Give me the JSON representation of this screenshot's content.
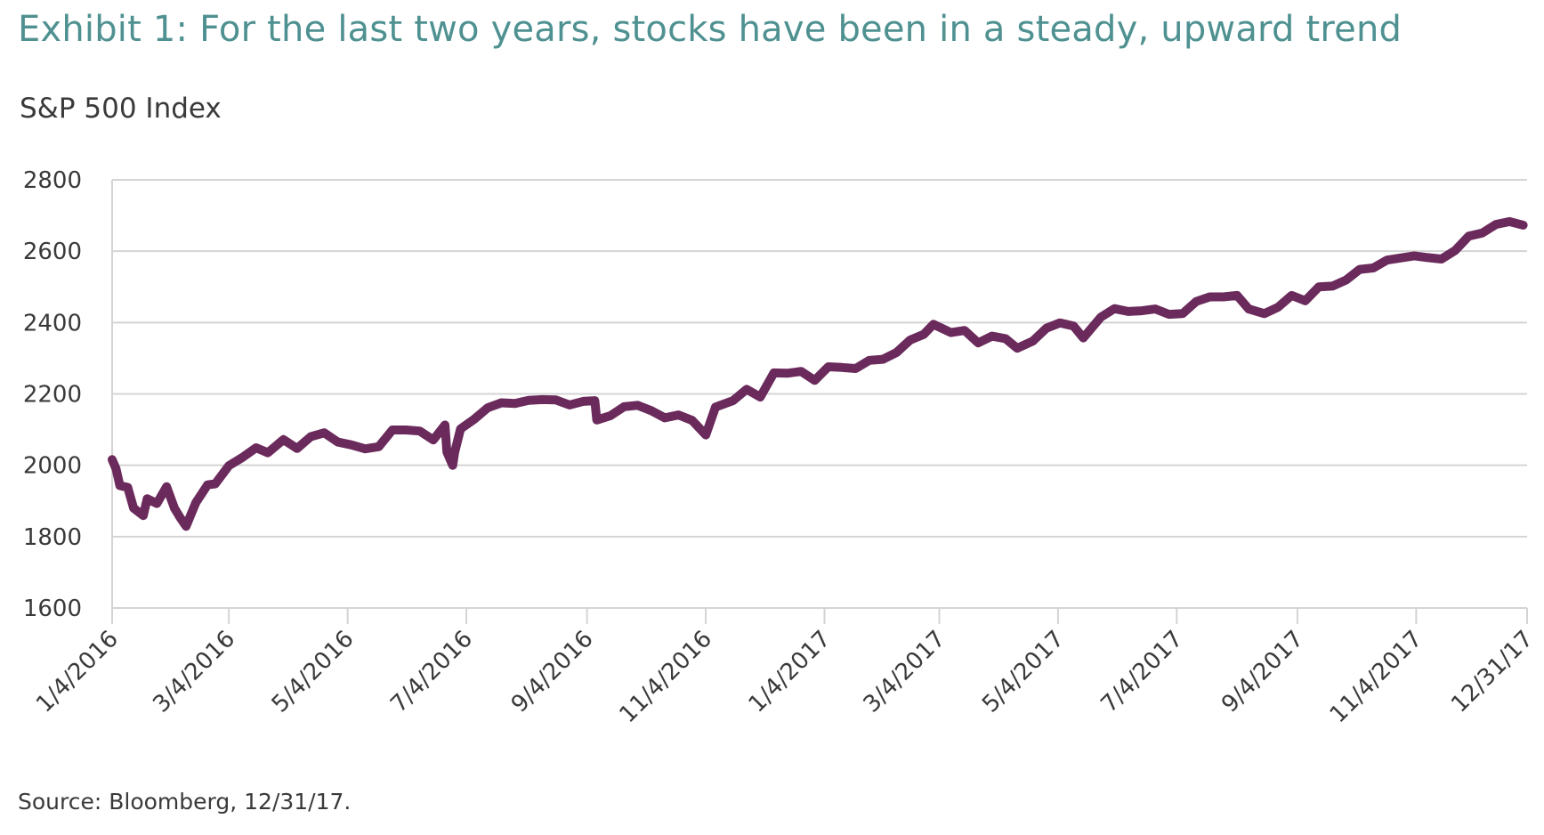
{
  "title": "Exhibit 1: For the last two years, stocks have been in a steady, upward trend",
  "subtitle": "S&P 500 Index",
  "source": "Source: Bloomberg, 12/31/17.",
  "colors": {
    "title": "#4f9191",
    "line": "#6b2a5c",
    "grid": "#d4d4d4",
    "text": "#3a3a3a"
  },
  "chart_data": {
    "type": "line",
    "title": "Exhibit 1: For the last two years, stocks have been in a steady, upward trend",
    "xlabel": "",
    "ylabel": "S&P 500 Index",
    "ylim": [
      1600,
      2800
    ],
    "yticks": [
      1600,
      1800,
      2000,
      2200,
      2400,
      2600,
      2800
    ],
    "xlim": [
      "2016-01-04",
      "2017-12-31"
    ],
    "xtick_labels": [
      "1/4/2016",
      "3/4/2016",
      "5/4/2016",
      "7/4/2016",
      "9/4/2016",
      "11/4/2016",
      "1/4/2017",
      "3/4/2017",
      "5/4/2017",
      "7/4/2017",
      "9/4/2017",
      "11/4/2017",
      "12/31/17"
    ],
    "xtick_dates": [
      "2016-01-04",
      "2016-03-04",
      "2016-05-04",
      "2016-07-04",
      "2016-09-04",
      "2016-11-04",
      "2017-01-04",
      "2017-03-04",
      "2017-05-04",
      "2017-07-04",
      "2017-09-04",
      "2017-11-04",
      "2017-12-31"
    ],
    "grid": true,
    "legend": "none",
    "series": [
      {
        "x": [
          "2016-01-04",
          "2016-01-06",
          "2016-01-08",
          "2016-01-12",
          "2016-01-15",
          "2016-01-20",
          "2016-01-22",
          "2016-01-27",
          "2016-02-01",
          "2016-02-05",
          "2016-02-08",
          "2016-02-11",
          "2016-02-16",
          "2016-02-22",
          "2016-02-26",
          "2016-03-04",
          "2016-03-11",
          "2016-03-18",
          "2016-03-24",
          "2016-04-01",
          "2016-04-08",
          "2016-04-15",
          "2016-04-22",
          "2016-04-29",
          "2016-05-06",
          "2016-05-13",
          "2016-05-20",
          "2016-05-27",
          "2016-06-03",
          "2016-06-10",
          "2016-06-17",
          "2016-06-23",
          "2016-06-24",
          "2016-06-27",
          "2016-06-28",
          "2016-07-01",
          "2016-07-08",
          "2016-07-15",
          "2016-07-22",
          "2016-07-29",
          "2016-08-05",
          "2016-08-12",
          "2016-08-19",
          "2016-08-26",
          "2016-09-02",
          "2016-09-08",
          "2016-09-09",
          "2016-09-16",
          "2016-09-23",
          "2016-09-30",
          "2016-10-07",
          "2016-10-14",
          "2016-10-21",
          "2016-10-28",
          "2016-11-04",
          "2016-11-09",
          "2016-11-18",
          "2016-11-25",
          "2016-12-02",
          "2016-12-09",
          "2016-12-16",
          "2016-12-23",
          "2016-12-30",
          "2017-01-06",
          "2017-01-13",
          "2017-01-20",
          "2017-01-27",
          "2017-02-03",
          "2017-02-10",
          "2017-02-17",
          "2017-02-24",
          "2017-03-01",
          "2017-03-10",
          "2017-03-17",
          "2017-03-24",
          "2017-03-31",
          "2017-04-07",
          "2017-04-13",
          "2017-04-21",
          "2017-04-28",
          "2017-05-05",
          "2017-05-12",
          "2017-05-17",
          "2017-05-26",
          "2017-06-02",
          "2017-06-09",
          "2017-06-16",
          "2017-06-23",
          "2017-06-30",
          "2017-07-07",
          "2017-07-14",
          "2017-07-21",
          "2017-07-28",
          "2017-08-04",
          "2017-08-10",
          "2017-08-18",
          "2017-08-25",
          "2017-09-01",
          "2017-09-08",
          "2017-09-15",
          "2017-09-22",
          "2017-09-29",
          "2017-10-06",
          "2017-10-13",
          "2017-10-20",
          "2017-10-27",
          "2017-11-03",
          "2017-11-10",
          "2017-11-17",
          "2017-11-24",
          "2017-12-01",
          "2017-12-08",
          "2017-12-15",
          "2017-12-22",
          "2017-12-29"
        ],
        "values": [
          2016,
          1990,
          1943,
          1938,
          1880,
          1859,
          1906,
          1893,
          1940,
          1880,
          1853,
          1829,
          1895,
          1945,
          1948,
          1999,
          2022,
          2049,
          2035,
          2072,
          2047,
          2080,
          2091,
          2065,
          2057,
          2046,
          2052,
          2099,
          2099,
          2096,
          2071,
          2113,
          2037,
          2000,
          2036,
          2102,
          2129,
          2161,
          2175,
          2173,
          2182,
          2184,
          2183,
          2169,
          2179,
          2181,
          2127,
          2139,
          2164,
          2168,
          2153,
          2133,
          2141,
          2126,
          2085,
          2163,
          2181,
          2213,
          2191,
          2259,
          2258,
          2263,
          2238,
          2276,
          2274,
          2271,
          2294,
          2297,
          2316,
          2351,
          2367,
          2395,
          2372,
          2378,
          2343,
          2362,
          2355,
          2328,
          2348,
          2384,
          2399,
          2390,
          2357,
          2415,
          2439,
          2431,
          2433,
          2438,
          2423,
          2425,
          2459,
          2472,
          2472,
          2476,
          2438,
          2425,
          2443,
          2476,
          2461,
          2500,
          2502,
          2519,
          2549,
          2553,
          2575,
          2581,
          2587,
          2582,
          2578,
          2602,
          2642,
          2651,
          2675,
          2683,
          2673
        ]
      }
    ]
  }
}
